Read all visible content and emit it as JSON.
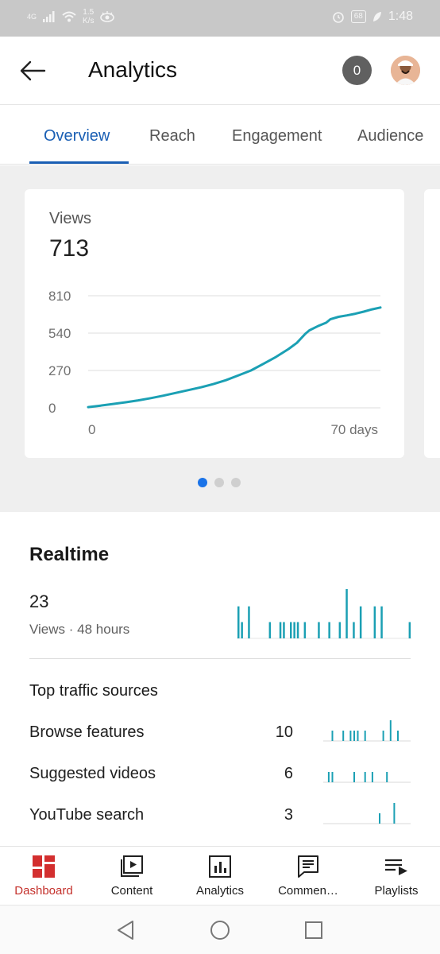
{
  "status_bar": {
    "network": "4G",
    "speed_value": "1.5",
    "speed_unit": "K/s",
    "battery": "68",
    "time": "1:48"
  },
  "app_bar": {
    "title": "Analytics",
    "notification_count": "0",
    "icons": {
      "back": "arrow-left-icon",
      "avatar": "user-avatar"
    }
  },
  "tabs": [
    {
      "label": "Overview",
      "active": true
    },
    {
      "label": "Reach",
      "active": false
    },
    {
      "label": "Engagement",
      "active": false
    },
    {
      "label": "Audience",
      "active": false
    }
  ],
  "card": {
    "label": "Views",
    "value": "713",
    "pager": {
      "count": 3,
      "active_index": 0
    }
  },
  "chart_data": {
    "type": "line",
    "title": "Views",
    "xlabel": "",
    "ylabel": "",
    "x_tick_labels": [
      "0",
      "70 days"
    ],
    "y_ticks": [
      0,
      270,
      540,
      810
    ],
    "ylim": [
      0,
      810
    ],
    "xlim": [
      0,
      70
    ],
    "grid": true,
    "color": "#1ba0b4",
    "series": [
      {
        "x": [
          0,
          3,
          6,
          9,
          12,
          15,
          18,
          21,
          24,
          27,
          30,
          33,
          36,
          39,
          42,
          45,
          48,
          50,
          52,
          53,
          55,
          57,
          58,
          60,
          62,
          64,
          66,
          68,
          70
        ],
        "y": [
          5,
          16,
          28,
          40,
          54,
          70,
          88,
          108,
          128,
          148,
          172,
          200,
          235,
          270,
          318,
          368,
          425,
          470,
          535,
          560,
          590,
          615,
          640,
          658,
          668,
          680,
          695,
          712,
          725
        ]
      }
    ]
  },
  "realtime": {
    "title": "Realtime",
    "count": "23",
    "subtitle": "Views · 48 hours",
    "bars": [
      0.65,
      0.33,
      0,
      0.65,
      0,
      0,
      0,
      0,
      0,
      0.33,
      0,
      0,
      0.33,
      0.33,
      0,
      0.33,
      0.33,
      0.33,
      0,
      0.33,
      0,
      0,
      0,
      0.33,
      0,
      0,
      0.33,
      0,
      0,
      0.33,
      0,
      1.0,
      0,
      0.33,
      0,
      0.65,
      0,
      0,
      0,
      0.65,
      0,
      0.65,
      0,
      0,
      0,
      0,
      0,
      0,
      0,
      0.33
    ],
    "color": "#1ba0b4"
  },
  "traffic": {
    "title": "Top traffic sources",
    "sources": [
      {
        "name": "Browse features",
        "value": "10",
        "spark": [
          0,
          0,
          0.5,
          0,
          0,
          0.5,
          0,
          0.5,
          0.5,
          0.5,
          0,
          0.5,
          0,
          0,
          0,
          0,
          0.5,
          0,
          1.0,
          0,
          0.5,
          0,
          0,
          0
        ]
      },
      {
        "name": "Suggested videos",
        "value": "6",
        "spark": [
          0,
          0.5,
          0.5,
          0,
          0,
          0,
          0,
          0,
          0.5,
          0,
          0,
          0.5,
          0,
          0.5,
          0,
          0,
          0,
          0.5,
          0,
          0,
          0,
          0,
          0,
          0
        ]
      },
      {
        "name": "YouTube search",
        "value": "3",
        "spark": [
          0,
          0,
          0,
          0,
          0,
          0,
          0,
          0,
          0,
          0,
          0,
          0,
          0,
          0,
          0,
          0.5,
          0,
          0,
          0,
          1.0,
          0,
          0,
          0,
          0
        ]
      }
    ]
  },
  "bottom_nav": [
    {
      "label": "Dashboard",
      "icon": "dashboard-icon",
      "active": true
    },
    {
      "label": "Content",
      "icon": "content-play-icon",
      "active": false
    },
    {
      "label": "Analytics",
      "icon": "analytics-chart-icon",
      "active": false
    },
    {
      "label": "Commen…",
      "icon": "comments-icon",
      "active": false
    },
    {
      "label": "Playlists",
      "icon": "playlist-icon",
      "active": false
    }
  ],
  "colors": {
    "accent_blue": "#1a5fb4",
    "brand_red": "#c4302b",
    "teal": "#1ba0b4"
  }
}
